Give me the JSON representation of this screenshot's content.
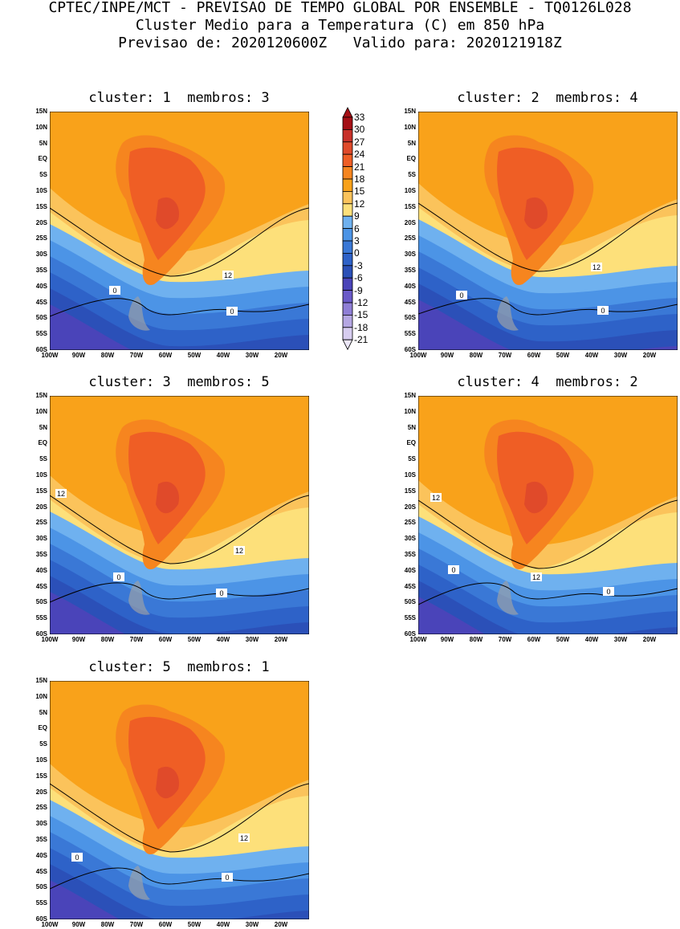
{
  "header": {
    "line1": "CPTEC/INPE/MCT - PREVISAO DE TEMPO GLOBAL POR ENSEMBLE - TQ0126L028",
    "line2": "Cluster Medio para a Temperatura (C) em 850 hPa",
    "line3": "Previsao de: 2020120600Z   Valido para: 2020121918Z"
  },
  "lat_labels": [
    "15N",
    "10N",
    "5N",
    "EQ",
    "5S",
    "10S",
    "15S",
    "20S",
    "25S",
    "30S",
    "35S",
    "40S",
    "45S",
    "50S",
    "55S",
    "60S"
  ],
  "lon_labels": [
    "100W",
    "90W",
    "80W",
    "70W",
    "60W",
    "50W",
    "40W",
    "30W",
    "20W"
  ],
  "colorbar": {
    "labels": [
      "33",
      "30",
      "27",
      "24",
      "21",
      "18",
      "15",
      "12",
      "9",
      "6",
      "3",
      "0",
      "-3",
      "-6",
      "-9",
      "-12",
      "-15",
      "-18",
      "-21"
    ],
    "colors": [
      "#a50f15",
      "#c8312a",
      "#e04a2a",
      "#ef5e25",
      "#f6851f",
      "#f9a21a",
      "#fbc35b",
      "#fde07a",
      "#6fb1ef",
      "#4c94e6",
      "#3a78d6",
      "#2e62c8",
      "#2b50b8",
      "#4a44b9",
      "#6a5ac8",
      "#8f7fd6",
      "#b5a7e3",
      "#d7cdf0"
    ]
  },
  "clusters": [
    {
      "title": "cluster: 1  membros: 3",
      "contour_labels": [
        "12",
        "0",
        "0"
      ]
    },
    {
      "title": "cluster: 2  membros: 4",
      "contour_labels": [
        "12",
        "0",
        "0"
      ]
    },
    {
      "title": "cluster: 3  membros: 5",
      "contour_labels": [
        "12",
        "12",
        "0",
        "0"
      ]
    },
    {
      "title": "cluster: 4  membros: 2",
      "contour_labels": [
        "12",
        "12",
        "0",
        "0"
      ]
    },
    {
      "title": "cluster: 5  membros: 1",
      "contour_labels": [
        "12",
        "0",
        "0"
      ]
    }
  ]
}
